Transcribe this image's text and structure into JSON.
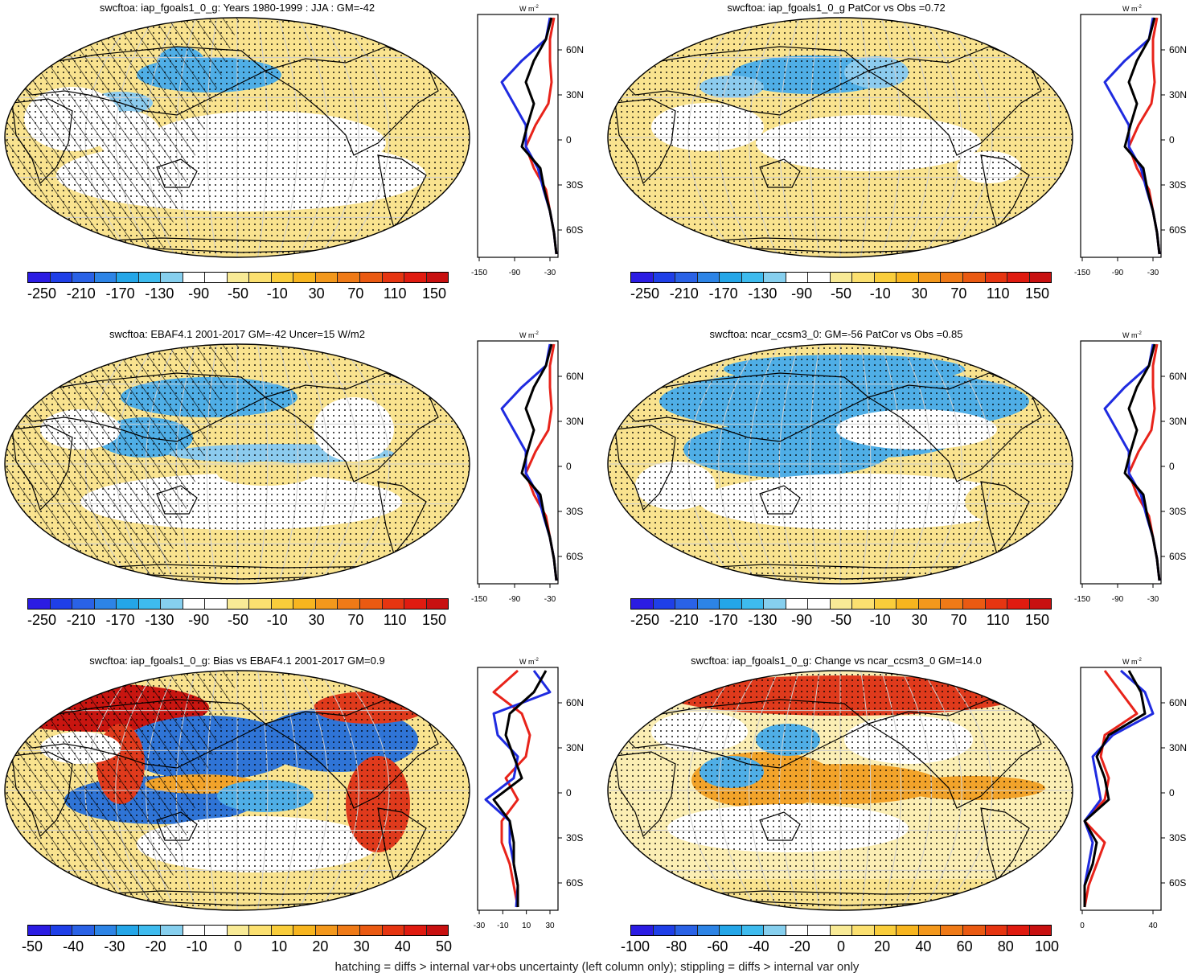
{
  "panels": [
    {
      "title": "swcftoa: iap_fgoals1_0_g: Years 1980-1999 : JJA : GM=-42",
      "colorbar": "main",
      "profile_ticks_x": [
        "-150",
        "-90",
        "-30"
      ]
    },
    {
      "title": "swcftoa: iap_fgoals1_0_g PatCor vs Obs =0.72",
      "colorbar": "main",
      "profile_ticks_x": [
        "-150",
        "-90",
        "-30"
      ]
    },
    {
      "title": "swcftoa: EBAF4.1 2001-2017 GM=-42 Uncer=15 W/m2",
      "colorbar": "main",
      "profile_ticks_x": [
        "-150",
        "-90",
        "-30"
      ]
    },
    {
      "title": "swcftoa: ncar_ccsm3_0: GM=-56 PatCor vs Obs =0.85",
      "colorbar": "main",
      "profile_ticks_x": [
        "-150",
        "-90",
        "-30"
      ]
    },
    {
      "title": "swcftoa: iap_fgoals1_0_g: Bias vs EBAF4.1 2001-2017 GM=0.9",
      "colorbar": "bias",
      "profile_ticks_x": [
        "-30",
        "-10",
        "10",
        "30"
      ]
    },
    {
      "title": "swcftoa: iap_fgoals1_0_g: Change vs ncar_ccsm3_0 GM=14.0",
      "colorbar": "change",
      "profile_ticks_x": [
        "0",
        "40"
      ]
    }
  ],
  "colorbars": {
    "main": {
      "labels": [
        "-250",
        "-210",
        "-170",
        "-130",
        "-90",
        "-50",
        "-10",
        "30",
        "70",
        "110",
        "150"
      ]
    },
    "bias": {
      "labels": [
        "-50",
        "-40",
        "-30",
        "-20",
        "-10",
        "0",
        "10",
        "20",
        "30",
        "40",
        "50"
      ]
    },
    "change": {
      "labels": [
        "-100",
        "-80",
        "-60",
        "-40",
        "-20",
        "0",
        "20",
        "40",
        "60",
        "80",
        "100"
      ]
    }
  },
  "colorbar_colors": [
    "#2b1ce3",
    "#1f3fe8",
    "#2a62e6",
    "#2d84e6",
    "#24a6e8",
    "#3ebbee",
    "#86cfee",
    "#ffffff",
    "#ffffff",
    "#f8ea96",
    "#fbe070",
    "#f9cd3b",
    "#f7b51f",
    "#f3981c",
    "#ef7a17",
    "#ea5a12",
    "#e63511",
    "#e01b10",
    "#c81010"
  ],
  "profile_unit": "W m",
  "profile_unit_sup": "-2",
  "lat_labels": [
    "60N",
    "30N",
    "0",
    "30S",
    "60S"
  ],
  "map_colors": {
    "ocean_yellow": "#f9e38f",
    "pale_yellow": "#fbeeb4",
    "blue": "#4faee6",
    "light_blue": "#8ccbee",
    "deep_blue": "#2f74d6",
    "orange": "#f2a32a",
    "red": "#df3a1c",
    "dark_red": "#c81510"
  },
  "profile_series_colors": {
    "model": "#e8231a",
    "obs": "#1f2be0",
    "other": "#000000"
  },
  "footer": "hatching = diffs > internal var+obs uncertainty (left column only); stippling = diffs > internal var only"
}
